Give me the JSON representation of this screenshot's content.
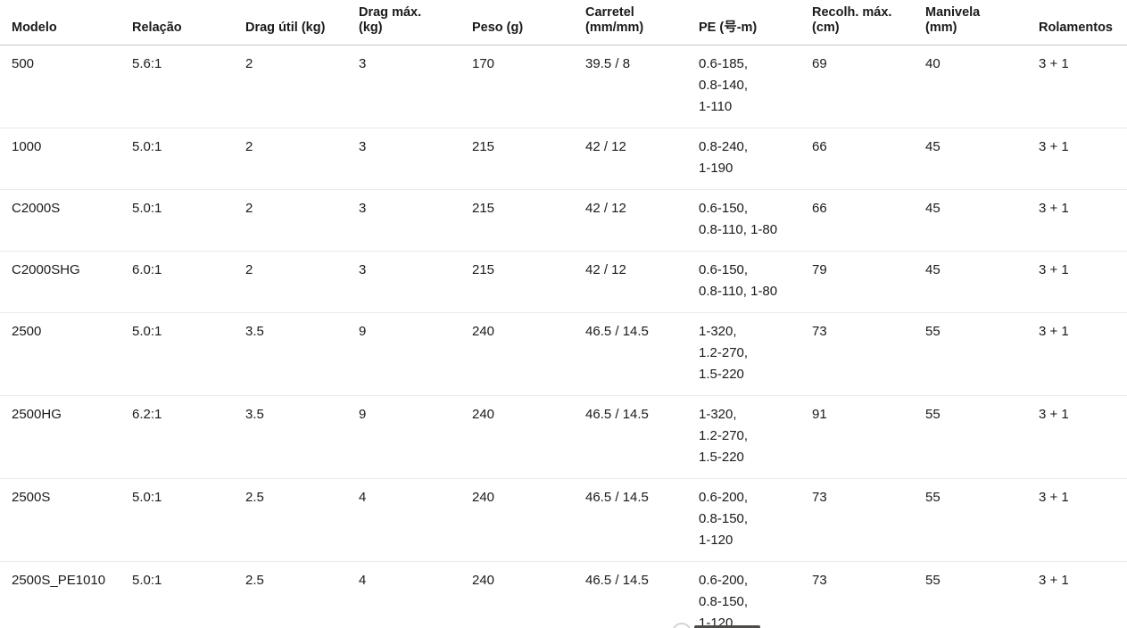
{
  "table": {
    "columns": [
      {
        "key": "modelo",
        "lines": [
          "Modelo"
        ]
      },
      {
        "key": "relacao",
        "lines": [
          "Relação"
        ]
      },
      {
        "key": "drag_util",
        "lines": [
          "Drag útil (kg)"
        ]
      },
      {
        "key": "drag_max",
        "lines": [
          "Drag máx.",
          "(kg)"
        ]
      },
      {
        "key": "peso",
        "lines": [
          "Peso (g)"
        ]
      },
      {
        "key": "carretel",
        "lines": [
          "Carretel",
          "(mm/mm)"
        ]
      },
      {
        "key": "pe",
        "lines": [
          "PE (号-m)"
        ]
      },
      {
        "key": "recolh",
        "lines": [
          "Recolh. máx.",
          "(cm)"
        ]
      },
      {
        "key": "manivela",
        "lines": [
          "Manivela",
          "(mm)"
        ]
      },
      {
        "key": "rolamentos",
        "lines": [
          "Rolamentos"
        ]
      }
    ],
    "rows": [
      {
        "modelo": "500",
        "relacao": "5.6:1",
        "drag_util": "2",
        "drag_max": "3",
        "peso": "170",
        "carretel": "39.5 / 8",
        "pe": [
          "0.6-185,",
          "0.8-140,",
          "1-110"
        ],
        "recolh": "69",
        "manivela": "40",
        "rolamentos": "3 + 1"
      },
      {
        "modelo": "1000",
        "relacao": "5.0:1",
        "drag_util": "2",
        "drag_max": "3",
        "peso": "215",
        "carretel": "42 / 12",
        "pe": [
          "0.8-240,",
          "1-190"
        ],
        "recolh": "66",
        "manivela": "45",
        "rolamentos": "3 + 1"
      },
      {
        "modelo": "C2000S",
        "relacao": "5.0:1",
        "drag_util": "2",
        "drag_max": "3",
        "peso": "215",
        "carretel": "42 / 12",
        "pe": [
          "0.6-150,",
          "0.8-110, 1-80"
        ],
        "recolh": "66",
        "manivela": "45",
        "rolamentos": "3 + 1"
      },
      {
        "modelo": "C2000SHG",
        "relacao": "6.0:1",
        "drag_util": "2",
        "drag_max": "3",
        "peso": "215",
        "carretel": "42 / 12",
        "pe": [
          "0.6-150,",
          "0.8-110, 1-80"
        ],
        "recolh": "79",
        "manivela": "45",
        "rolamentos": "3 + 1"
      },
      {
        "modelo": "2500",
        "relacao": "5.0:1",
        "drag_util": "3.5",
        "drag_max": "9",
        "peso": "240",
        "carretel": "46.5 / 14.5",
        "pe": [
          "1-320,",
          "1.2-270,",
          "1.5-220"
        ],
        "recolh": "73",
        "manivela": "55",
        "rolamentos": "3 + 1"
      },
      {
        "modelo": "2500HG",
        "relacao": "6.2:1",
        "drag_util": "3.5",
        "drag_max": "9",
        "peso": "240",
        "carretel": "46.5 / 14.5",
        "pe": [
          "1-320,",
          "1.2-270,",
          "1.5-220"
        ],
        "recolh": "91",
        "manivela": "55",
        "rolamentos": "3 + 1"
      },
      {
        "modelo": "2500S",
        "relacao": "5.0:1",
        "drag_util": "2.5",
        "drag_max": "4",
        "peso": "240",
        "carretel": "46.5 / 14.5",
        "pe": [
          "0.6-200,",
          "0.8-150,",
          "1-120"
        ],
        "recolh": "73",
        "manivela": "55",
        "rolamentos": "3 + 1"
      },
      {
        "modelo": "2500S_PE1010",
        "relacao": "5.0:1",
        "drag_util": "2.5",
        "drag_max": "4",
        "peso": "240",
        "carretel": "46.5 / 14.5",
        "pe": [
          "0.6-200,",
          "0.8-150,",
          "1-120"
        ],
        "recolh": "73",
        "manivela": "55",
        "rolamentos": "3 + 1"
      }
    ]
  },
  "colors": {
    "text": "#1a1a1a",
    "header_border": "#c6c6c6",
    "row_border": "#e9e9e9",
    "background": "#ffffff"
  }
}
